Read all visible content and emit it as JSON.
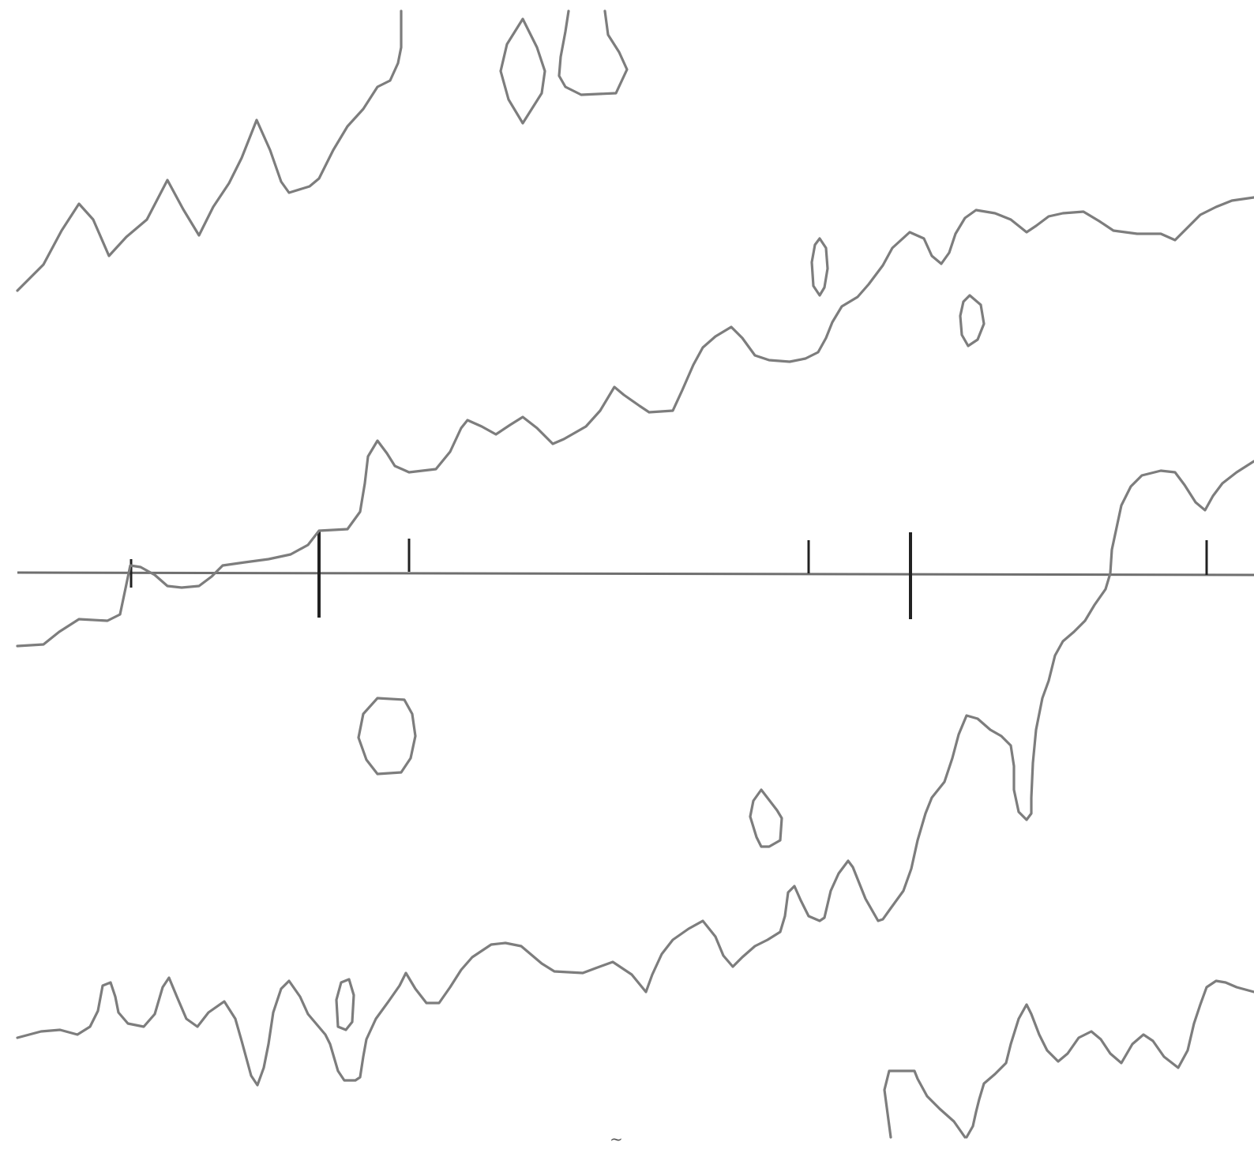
{
  "figure": {
    "kind": "contour-trace",
    "background": "#ffffff",
    "line_color": "#7d7d7d",
    "axis_color": "#6f6f6f",
    "tick_color": "#222222",
    "marks": {
      "bottom_glyph": "~"
    },
    "note": ""
  }
}
